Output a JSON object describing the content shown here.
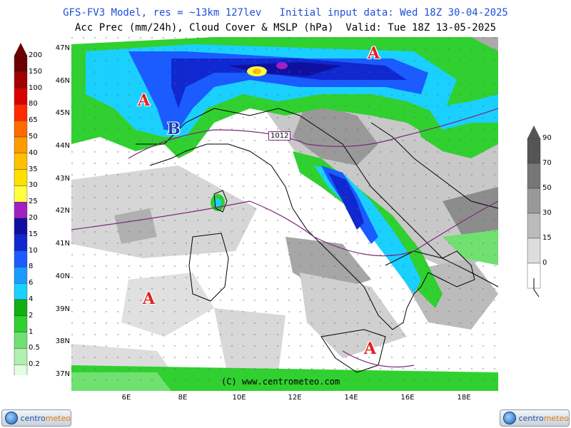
{
  "header": {
    "line1": "GFS-FV3 Model, res = ~13km 127lev   Initial input data: Wed 18Z 30-04-2025",
    "line2": "Acc Prec (mm/24h), Cloud Cover & MSLP (hPa)  Valid: Tue 18Z 13-05-2025"
  },
  "map": {
    "lat_labels": [
      "47N",
      "46N",
      "45N",
      "44N",
      "43N",
      "42N",
      "41N",
      "40N",
      "39N",
      "38N",
      "37N"
    ],
    "lon_labels": [
      "6E",
      "8E",
      "10E",
      "12E",
      "14E",
      "16E",
      "18E"
    ],
    "isobar_label": "1012",
    "credit": "(C) www.centrometeo.com",
    "pressure_centers": [
      {
        "label": "A"
      },
      {
        "label": "B"
      },
      {
        "label": "A"
      },
      {
        "label": "A"
      },
      {
        "label": "A"
      }
    ]
  },
  "precip_legend": {
    "levels": [
      "200",
      "150",
      "100",
      "80",
      "65",
      "50",
      "40",
      "35",
      "30",
      "25",
      "20",
      "15",
      "10",
      "8",
      "6",
      "4",
      "2",
      "1",
      "0.5",
      "0.2"
    ],
    "colors": [
      "#6b0000",
      "#a00000",
      "#d80000",
      "#ff2a00",
      "#ff6a00",
      "#ff9a00",
      "#ffc000",
      "#ffe000",
      "#ffff40",
      "#a020c0",
      "#1010a0",
      "#1028d0",
      "#1a5cff",
      "#1a9bff",
      "#1ad0ff",
      "#10b010",
      "#30d030",
      "#70e070",
      "#b0f0b0",
      "#e0ffe0"
    ]
  },
  "cloud_legend": {
    "levels": [
      "90",
      "70",
      "50",
      "30",
      "15",
      "0"
    ],
    "colors": [
      "#555555",
      "#777777",
      "#999999",
      "#bbbbbb",
      "#dddddd",
      "#ffffff"
    ]
  },
  "logos": {
    "brand_a": "centro",
    "brand_b": "meteo"
  }
}
